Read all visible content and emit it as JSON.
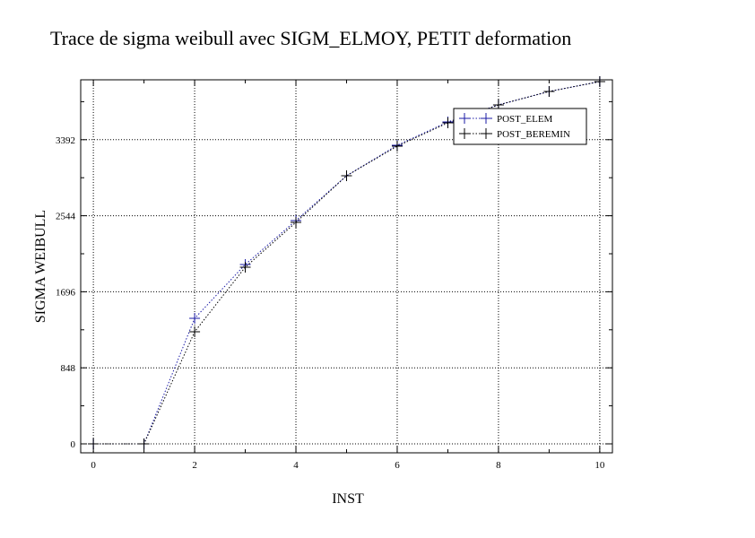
{
  "chart_data": {
    "type": "line",
    "title": "Trace de sigma weibull avec SIGM_ELMOY, PETIT deformation",
    "xlabel": "INST",
    "ylabel": "SIGMA WEIBULL",
    "xlim": [
      -0.25,
      10.25
    ],
    "ylim": [
      -100,
      4060
    ],
    "x_ticks": [
      0,
      2,
      4,
      6,
      8,
      10
    ],
    "x_tick_labels": [
      "0",
      "2",
      "4",
      "6",
      "8",
      "10"
    ],
    "y_ticks": [
      0,
      848,
      1696,
      2544,
      3392
    ],
    "y_tick_labels": [
      "0",
      "848",
      "1696",
      "2544",
      "3392"
    ],
    "grid": true,
    "grid_style": "dotted",
    "legend_position": "top-right",
    "series": [
      {
        "name": "POST_ELEM",
        "color": "#1a1aa6",
        "marker": "plus",
        "line_style": "dotted",
        "x": [
          0,
          1,
          2,
          3,
          4,
          5,
          6,
          7,
          8,
          9,
          10
        ],
        "y": [
          0,
          0,
          1400,
          2000,
          2490,
          2990,
          3330,
          3590,
          3780,
          3930,
          4040
        ]
      },
      {
        "name": "POST_BEREMIN",
        "color": "#000000",
        "marker": "plus",
        "line_style": "dotted",
        "x": [
          0,
          1,
          2,
          3,
          4,
          5,
          6,
          7,
          8,
          9,
          10
        ],
        "y": [
          0,
          0,
          1250,
          1970,
          2470,
          2990,
          3320,
          3580,
          3780,
          3930,
          4040
        ]
      }
    ]
  }
}
